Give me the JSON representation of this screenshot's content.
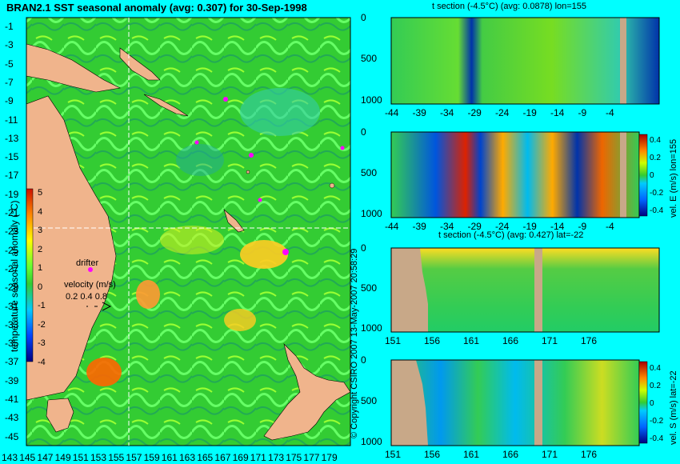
{
  "map": {
    "title": "BRAN2.1 SST seasonal anomaly (avg: 0.307) for 30-Sep-1998",
    "colorbar_label": "temperature seasonal anomaly (°C)",
    "colorbar_ticks": [
      "5",
      "4",
      "3",
      "2",
      "1",
      "0",
      "-1",
      "-2",
      "-3",
      "-4"
    ],
    "drifter_label": "drifter",
    "velocity_label": "velocity (m/s)",
    "velocity_scale": "0.2 0.4 0.8",
    "copyright": "© Copyright CSIRO 2007  13-May-2007 20:58:29"
  },
  "panels": {
    "p1_title": "t section (-4.5°C) (avg: 0.0878) lon=155",
    "p2_label": "vel. E (m/s) lon=155",
    "p3_title": "t section (-4.5°C) (avg: 0.427) lat=-22",
    "p4_label": "vel. S (m/s) lat=-22",
    "cbar_ticks": [
      "0.4",
      "0.2",
      "0",
      "-0.2",
      "-0.4"
    ]
  },
  "chart_data": [
    {
      "type": "heatmap",
      "title": "BRAN2.1 SST seasonal anomaly (avg: 0.307) for 30-Sep-1998",
      "x": [
        143,
        145,
        147,
        149,
        151,
        153,
        155,
        157,
        159,
        161,
        163,
        165,
        167,
        169,
        171,
        173,
        175,
        177,
        179
      ],
      "y": [
        -1,
        -3,
        -5,
        -7,
        -9,
        -11,
        -13,
        -15,
        -17,
        -19,
        -21,
        -23,
        -25,
        -27,
        -29,
        -31,
        -33,
        -35,
        -37,
        -39,
        -41,
        -43,
        -45
      ],
      "colorbar": {
        "label": "temperature seasonal anomaly (°C)",
        "range": [
          -4,
          5
        ]
      },
      "crosshair": {
        "lon": 155,
        "lat": -22
      }
    },
    {
      "type": "heatmap",
      "title": "t section (-4.5°C) (avg: 0.0878) lon=155",
      "x": [
        -44,
        -39,
        -34,
        -29,
        -24,
        -19,
        -14,
        -9,
        -4
      ],
      "y": [
        0,
        500,
        1000
      ]
    },
    {
      "type": "heatmap",
      "x": [
        -44,
        -39,
        -34,
        -29,
        -24,
        -19,
        -14,
        -9,
        -4
      ],
      "y": [
        0,
        500,
        1000
      ],
      "colorbar": {
        "label": "vel. E (m/s) lon=155",
        "range": [
          -0.4,
          0.4
        ]
      }
    },
    {
      "type": "heatmap",
      "title": "t section (-4.5°C) (avg: 0.427) lat=-22",
      "x": [
        151,
        156,
        161,
        166,
        171,
        176
      ],
      "y": [
        0,
        500,
        1000
      ]
    },
    {
      "type": "heatmap",
      "x": [
        151,
        156,
        161,
        166,
        171,
        176
      ],
      "y": [
        0,
        500,
        1000
      ],
      "colorbar": {
        "label": "vel. S (m/s) lat=-22",
        "range": [
          -0.4,
          0.4
        ]
      }
    }
  ]
}
